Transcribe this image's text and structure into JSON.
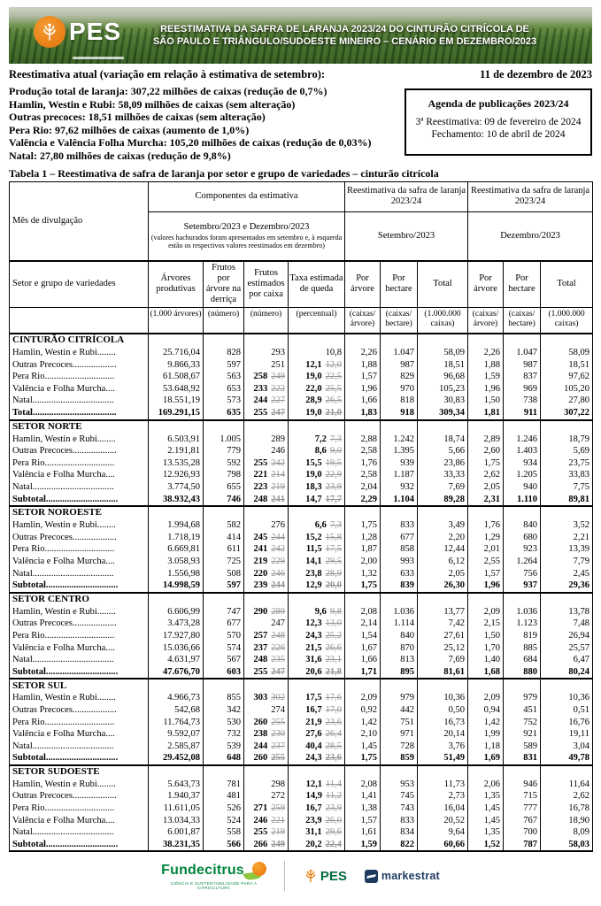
{
  "banner": {
    "logo_text": "PES",
    "title_line1": "REESTIMATIVA DA SAFRA DE LARANJA 2023/24 DO CINTURÃO CITRÍCOLA DE",
    "title_line2": "SÃO PAULO E TRIÂNGULO/SUDOESTE MINEIRO – CENÁRIO EM DEZEMBRO/2023"
  },
  "dateline": {
    "label": "Reestimativa atual (variação em relação à estimativa de setembro):",
    "date": "11 de dezembro de 2023"
  },
  "summary_lines": [
    "Produção total de laranja: 307,22 milhões de caixas (redução de 0,7%)",
    "Hamlin, Westin e Rubi: 58,09 milhões de caixas (sem alteração)",
    "Outras precoces: 18,51 milhões de caixas (sem alteração)",
    "Pera Rio: 97,62 milhões de caixas (aumento de 1,0%)",
    "Valência e Valência Folha Murcha: 105,20 milhões de caixas (redução de 0,03%)",
    "Natal: 27,80 milhões de caixas (redução de 9,8%)"
  ],
  "agenda_box": {
    "title": "Agenda de publicações 2023/24",
    "line1": "3ª Reestimativa: 09 de fevereiro de 2024",
    "line2": "Fechamento: 10 de abril de 2024"
  },
  "table": {
    "caption": "Tabela 1 – Reestimativa de safra de laranja por setor e grupo de variedades – cinturão citrícola",
    "header": {
      "mes": "Mês de divulgação",
      "componentes": "Componentes da estimativa",
      "reestimativa": "Reestimativa da safra de laranja 2023/24",
      "componentes_sub": "Setembro/2023 e Dezembro/2023",
      "componentes_note": "(valores hachurados foram apresentados em setembro e, à esquerda estão os respectivos valores reestimados em dezembro)",
      "setembro": "Setembro/2023",
      "dezembro": "Dezembro/2023",
      "setor": "Setor e grupo de variedades",
      "cols": [
        "Árvores produtivas",
        "Frutos por árvore na derriça",
        "Frutos estimados por caixa",
        "Taxa estimada de queda",
        "Por árvore",
        "Por hectare",
        "Total",
        "Por árvore",
        "Por hectare",
        "Total"
      ],
      "units": [
        "(1.000 árvores)",
        "(número)",
        "(número)",
        "(percentual)",
        "(caixas/ árvore)",
        "(caixas/ hectare)",
        "(1.000.000 caixas)",
        "(caixas/ árvore)",
        "(caixas/ hectare)",
        "(1.000.000 caixas)"
      ]
    },
    "sections": [
      {
        "name": "CINTURÃO CITRÍCOLA",
        "rows": [
          {
            "label": "Hamlin, Westin e Rubi........",
            "v": [
              "25.716,04",
              "828",
              "293",
              null,
              "10,8",
              null,
              "2,26",
              "1.047",
              "58,09",
              "2,26",
              "1.047",
              "58,09"
            ]
          },
          {
            "label": "Outras Precoces...................",
            "v": [
              "9.866,33",
              "597",
              "251",
              null,
              "12,1",
              "12,0",
              "1,88",
              "987",
              "18,51",
              "1,88",
              "987",
              "18,51"
            ]
          },
          {
            "label": "Pera Rio..............................",
            "v": [
              "61.508,67",
              "563",
              "258",
              "249",
              "19,0",
              "22,5",
              "1,57",
              "829",
              "96,68",
              "1,59",
              "837",
              "97,62"
            ]
          },
          {
            "label": "Valência e Folha Murcha....",
            "v": [
              "53.648,92",
              "653",
              "233",
              "222",
              "22,0",
              "25,5",
              "1,96",
              "970",
              "105,23",
              "1,96",
              "969",
              "105,20"
            ]
          },
          {
            "label": "Natal...................................",
            "v": [
              "18.551,19",
              "573",
              "244",
              "227",
              "28,9",
              "26,5",
              "1,66",
              "818",
              "30,83",
              "1,50",
              "738",
              "27,80"
            ]
          },
          {
            "label": "Total....................................",
            "total": true,
            "v": [
              "169.291,15",
              "635",
              "255",
              "247",
              "19,0",
              "21,0",
              "1,83",
              "918",
              "309,34",
              "1,81",
              "911",
              "307,22"
            ]
          }
        ]
      },
      {
        "name": "SETOR NORTE",
        "rows": [
          {
            "label": "Hamlin, Westin e Rubi........",
            "v": [
              "6.503,91",
              "1.005",
              "289",
              null,
              "7,2",
              "7,3",
              "2,88",
              "1.242",
              "18,74",
              "2,89",
              "1.246",
              "18,79"
            ]
          },
          {
            "label": "Outras Precoces...................",
            "v": [
              "2.191,81",
              "779",
              "246",
              null,
              "8,6",
              "9,0",
              "2,58",
              "1.395",
              "5,66",
              "2,60",
              "1.403",
              "5,69"
            ]
          },
          {
            "label": "Pera Rio..............................",
            "v": [
              "13.535,28",
              "592",
              "255",
              "242",
              "15,5",
              "19,5",
              "1,76",
              "939",
              "23,86",
              "1,75",
              "934",
              "23,75"
            ]
          },
          {
            "label": "Valência e Folha Murcha....",
            "v": [
              "12.926,93",
              "798",
              "221",
              "214",
              "19,0",
              "22,9",
              "2,58",
              "1.187",
              "33,33",
              "2,62",
              "1.205",
              "33,83"
            ]
          },
          {
            "label": "Natal...................................",
            "v": [
              "3.774,50",
              "655",
              "223",
              "219",
              "18,3",
              "23,9",
              "2,04",
              "932",
              "7,69",
              "2,05",
              "940",
              "7,75"
            ]
          },
          {
            "label": "Subtotal...............................",
            "total": true,
            "v": [
              "38.932,43",
              "746",
              "248",
              "241",
              "14,7",
              "17,7",
              "2,29",
              "1.104",
              "89,28",
              "2,31",
              "1.110",
              "89,81"
            ]
          }
        ]
      },
      {
        "name": "SETOR NOROESTE",
        "rows": [
          {
            "label": "Hamlin, Westin e Rubi........",
            "v": [
              "1.994,68",
              "582",
              "276",
              null,
              "6,6",
              "7,3",
              "1,75",
              "833",
              "3,49",
              "1,76",
              "840",
              "3,52"
            ]
          },
          {
            "label": "Outras Precoces...................",
            "v": [
              "1.718,19",
              "414",
              "245",
              "244",
              "15,2",
              "15,8",
              "1,28",
              "677",
              "2,20",
              "1,29",
              "680",
              "2,21"
            ]
          },
          {
            "label": "Pera Rio..............................",
            "v": [
              "6.669,81",
              "611",
              "241",
              "242",
              "11,5",
              "17,5",
              "1,87",
              "858",
              "12,44",
              "2,01",
              "923",
              "13,39"
            ]
          },
          {
            "label": "Valência e Folha Murcha....",
            "v": [
              "3.058,93",
              "725",
              "219",
              "229",
              "14,1",
              "29,5",
              "2,00",
              "993",
              "6,12",
              "2,55",
              "1.264",
              "7,79"
            ]
          },
          {
            "label": "Natal...................................",
            "v": [
              "1.556,98",
              "508",
              "220",
              "246",
              "23,8",
              "28,9",
              "1,32",
              "633",
              "2,05",
              "1,57",
              "756",
              "2,45"
            ]
          },
          {
            "label": "Subtotal...............................",
            "total": true,
            "v": [
              "14.998,59",
              "597",
              "239",
              "244",
              "12,9",
              "20,0",
              "1,75",
              "839",
              "26,30",
              "1,96",
              "937",
              "29,36"
            ]
          }
        ]
      },
      {
        "name": "SETOR CENTRO",
        "rows": [
          {
            "label": "Hamlin, Westin e Rubi........",
            "v": [
              "6.606,99",
              "747",
              "290",
              "289",
              "9,6",
              "9,8",
              "2,08",
              "1.036",
              "13,77",
              "2,09",
              "1.036",
              "13,78"
            ]
          },
          {
            "label": "Outras Precoces...................",
            "v": [
              "3.473,28",
              "677",
              "247",
              null,
              "12,3",
              "13,0",
              "2,14",
              "1.114",
              "7,42",
              "2,15",
              "1.123",
              "7,48"
            ]
          },
          {
            "label": "Pera Rio..............................",
            "v": [
              "17.927,80",
              "570",
              "257",
              "248",
              "24,3",
              "25,2",
              "1,54",
              "840",
              "27,61",
              "1,50",
              "819",
              "26,94"
            ]
          },
          {
            "label": "Valência e Folha Murcha....",
            "v": [
              "15.036,66",
              "574",
              "237",
              "226",
              "21,5",
              "26,6",
              "1,67",
              "870",
              "25,12",
              "1,70",
              "885",
              "25,57"
            ]
          },
          {
            "label": "Natal...................................",
            "v": [
              "4.631,97",
              "567",
              "248",
              "235",
              "31,6",
              "23,1",
              "1,66",
              "813",
              "7,69",
              "1,40",
              "684",
              "6,47"
            ]
          },
          {
            "label": "Subtotal...............................",
            "total": true,
            "v": [
              "47.676,70",
              "603",
              "255",
              "247",
              "20,6",
              "21,8",
              "1,71",
              "895",
              "81,61",
              "1,68",
              "880",
              "80,24"
            ]
          }
        ]
      },
      {
        "name": "SETOR SUL",
        "rows": [
          {
            "label": "Hamlin, Westin e Rubi........",
            "v": [
              "4.966,73",
              "855",
              "303",
              "302",
              "17,5",
              "17,6",
              "2,09",
              "979",
              "10,36",
              "2,09",
              "979",
              "10,36"
            ]
          },
          {
            "label": "Outras Precoces...................",
            "v": [
              "542,68",
              "342",
              "274",
              null,
              "16,7",
              "17,0",
              "0,92",
              "442",
              "0,50",
              "0,94",
              "451",
              "0,51"
            ]
          },
          {
            "label": "Pera Rio..............................",
            "v": [
              "11.764,73",
              "530",
              "260",
              "255",
              "21,9",
              "23,6",
              "1,42",
              "751",
              "16,73",
              "1,42",
              "752",
              "16,76"
            ]
          },
          {
            "label": "Valência e Folha Murcha....",
            "v": [
              "9.592,07",
              "732",
              "238",
              "230",
              "27,6",
              "26,4",
              "2,10",
              "971",
              "20,14",
              "1,99",
              "921",
              "19,11"
            ]
          },
          {
            "label": "Natal...................................",
            "v": [
              "2.585,87",
              "539",
              "244",
              "237",
              "40,4",
              "28,5",
              "1,45",
              "728",
              "3,76",
              "1,18",
              "589",
              "3,04"
            ]
          },
          {
            "label": "Subtotal...............................",
            "total": true,
            "v": [
              "29.452,08",
              "648",
              "260",
              "255",
              "24,3",
              "23,6",
              "1,75",
              "859",
              "51,49",
              "1,69",
              "831",
              "49,78"
            ]
          }
        ]
      },
      {
        "name": "SETOR SUDOESTE",
        "rows": [
          {
            "label": "Hamlin, Westin e Rubi........",
            "v": [
              "5.643,73",
              "781",
              "298",
              null,
              "12,1",
              "11,4",
              "2,08",
              "953",
              "11,73",
              "2,06",
              "946",
              "11,64"
            ]
          },
          {
            "label": "Outras Precoces...................",
            "v": [
              "1.940,37",
              "481",
              "272",
              null,
              "14,9",
              "11,2",
              "1,41",
              "745",
              "2,73",
              "1,35",
              "715",
              "2,62"
            ]
          },
          {
            "label": "Pera Rio..............................",
            "v": [
              "11.611,05",
              "526",
              "271",
              "259",
              "16,7",
              "23,9",
              "1,38",
              "743",
              "16,04",
              "1,45",
              "777",
              "16,78"
            ]
          },
          {
            "label": "Valência e Folha Murcha....",
            "v": [
              "13.034,33",
              "524",
              "246",
              "221",
              "23,9",
              "26,0",
              "1,57",
              "833",
              "20,52",
              "1,45",
              "767",
              "18,90"
            ]
          },
          {
            "label": "Natal...................................",
            "v": [
              "6.001,87",
              "558",
              "255",
              "219",
              "31,1",
              "29,6",
              "1,61",
              "834",
              "9,64",
              "1,35",
              "700",
              "8,09"
            ]
          },
          {
            "label": "Subtotal...............................",
            "total": true,
            "v": [
              "38.231,35",
              "566",
              "266",
              "249",
              "20,2",
              "22,4",
              "1,59",
              "822",
              "60,66",
              "1,52",
              "787",
              "58,03"
            ]
          }
        ]
      }
    ]
  },
  "footer": {
    "fundecitrus": "Fundecitrus",
    "fundecitrus_tagline": "CIÊNCIA E SUSTENTABILIDADE PARA A CITRICULTURA",
    "pes": "PES",
    "markestrat": "markestrat"
  }
}
